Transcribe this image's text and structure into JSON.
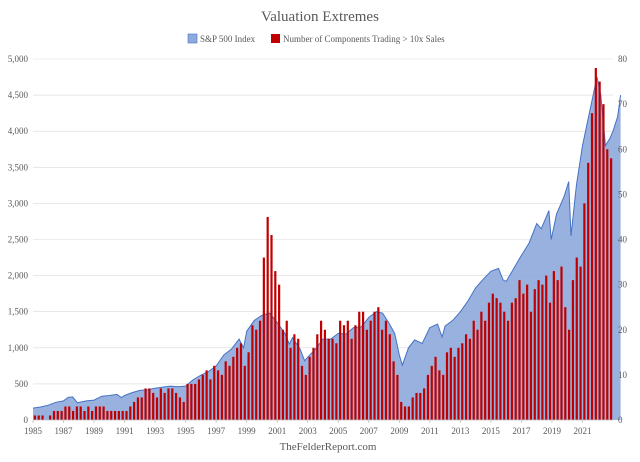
{
  "chart_data": {
    "type": "area+bar",
    "title": "Valuation Extremes",
    "footer": "TheFelderReport.com",
    "legend": [
      "S&P 500 Index",
      "Number of Components Trading > 10x Sales"
    ],
    "colors": {
      "area": "#8EA9DB",
      "area_line": "#4472C4",
      "bar": "#C00000",
      "grid": "#D9D9D9"
    },
    "x_range": [
      1985,
      2023
    ],
    "x_ticks": [
      "1985",
      "1987",
      "1989",
      "1991",
      "1993",
      "1995",
      "1997",
      "1999",
      "2001",
      "2003",
      "2005",
      "2007",
      "2009",
      "2011",
      "2013",
      "2015",
      "2017",
      "2019",
      "2021"
    ],
    "y_left": {
      "min": 0,
      "max": 5000,
      "step": 500,
      "tick_labels": [
        "0",
        "500",
        "1,000",
        "1,500",
        "2,000",
        "2,500",
        "3,000",
        "3,500",
        "4,000",
        "4,500",
        "5,000"
      ]
    },
    "y_right": {
      "min": 0,
      "max": 80,
      "step": 10,
      "tick_labels": [
        "0",
        "10",
        "20",
        "30",
        "40",
        "50",
        "60",
        "70",
        "80"
      ]
    },
    "series": [
      {
        "name": "S&P 500 Index",
        "axis": "left",
        "kind": "area",
        "points": [
          [
            1985.0,
            165
          ],
          [
            1985.5,
            180
          ],
          [
            1986.0,
            205
          ],
          [
            1986.5,
            245
          ],
          [
            1987.0,
            265
          ],
          [
            1987.3,
            315
          ],
          [
            1987.6,
            320
          ],
          [
            1987.9,
            240
          ],
          [
            1988.5,
            265
          ],
          [
            1989.0,
            275
          ],
          [
            1989.5,
            330
          ],
          [
            1990.0,
            340
          ],
          [
            1990.5,
            355
          ],
          [
            1990.8,
            310
          ],
          [
            1991.0,
            340
          ],
          [
            1991.5,
            380
          ],
          [
            1992.0,
            410
          ],
          [
            1992.5,
            420
          ],
          [
            1993.0,
            440
          ],
          [
            1993.5,
            455
          ],
          [
            1994.0,
            470
          ],
          [
            1994.5,
            460
          ],
          [
            1995.0,
            470
          ],
          [
            1995.5,
            560
          ],
          [
            1996.0,
            620
          ],
          [
            1996.5,
            670
          ],
          [
            1997.0,
            750
          ],
          [
            1997.5,
            900
          ],
          [
            1998.0,
            980
          ],
          [
            1998.5,
            1120
          ],
          [
            1998.8,
            1000
          ],
          [
            1999.0,
            1230
          ],
          [
            1999.5,
            1380
          ],
          [
            2000.0,
            1450
          ],
          [
            2000.5,
            1480
          ],
          [
            2001.0,
            1350
          ],
          [
            2001.5,
            1200
          ],
          [
            2001.8,
            1050
          ],
          [
            2002.0,
            1140
          ],
          [
            2002.5,
            980
          ],
          [
            2002.8,
            820
          ],
          [
            2003.0,
            870
          ],
          [
            2003.5,
            980
          ],
          [
            2004.0,
            1120
          ],
          [
            2004.5,
            1120
          ],
          [
            2005.0,
            1200
          ],
          [
            2005.5,
            1190
          ],
          [
            2006.0,
            1280
          ],
          [
            2006.5,
            1290
          ],
          [
            2007.0,
            1420
          ],
          [
            2007.5,
            1500
          ],
          [
            2007.9,
            1480
          ],
          [
            2008.3,
            1350
          ],
          [
            2008.7,
            1200
          ],
          [
            2009.0,
            900
          ],
          [
            2009.2,
            760
          ],
          [
            2009.6,
            1000
          ],
          [
            2010.0,
            1110
          ],
          [
            2010.5,
            1060
          ],
          [
            2011.0,
            1280
          ],
          [
            2011.5,
            1330
          ],
          [
            2011.8,
            1150
          ],
          [
            2012.0,
            1300
          ],
          [
            2012.5,
            1380
          ],
          [
            2013.0,
            1500
          ],
          [
            2013.5,
            1650
          ],
          [
            2014.0,
            1830
          ],
          [
            2014.5,
            1950
          ],
          [
            2015.0,
            2060
          ],
          [
            2015.5,
            2100
          ],
          [
            2015.8,
            1940
          ],
          [
            2016.0,
            1920
          ],
          [
            2016.5,
            2100
          ],
          [
            2017.0,
            2280
          ],
          [
            2017.5,
            2450
          ],
          [
            2018.0,
            2720
          ],
          [
            2018.3,
            2650
          ],
          [
            2018.8,
            2900
          ],
          [
            2018.95,
            2500
          ],
          [
            2019.3,
            2850
          ],
          [
            2019.8,
            3100
          ],
          [
            2020.1,
            3300
          ],
          [
            2020.25,
            2550
          ],
          [
            2020.6,
            3250
          ],
          [
            2021.0,
            3800
          ],
          [
            2021.5,
            4300
          ],
          [
            2021.95,
            4750
          ],
          [
            2022.2,
            4500
          ],
          [
            2022.5,
            3800
          ],
          [
            2022.8,
            3900
          ],
          [
            2023.0,
            4000
          ],
          [
            2023.3,
            4200
          ],
          [
            2023.5,
            4500
          ]
        ]
      },
      {
        "name": "Number of Components Trading > 10x Sales",
        "axis": "right",
        "kind": "bar",
        "values": [
          [
            1985.0,
            1
          ],
          [
            1985.25,
            1
          ],
          [
            1985.5,
            1
          ],
          [
            1985.75,
            0
          ],
          [
            1986.0,
            1
          ],
          [
            1986.25,
            2
          ],
          [
            1986.5,
            2
          ],
          [
            1986.75,
            2
          ],
          [
            1987.0,
            3
          ],
          [
            1987.25,
            3
          ],
          [
            1987.5,
            2
          ],
          [
            1987.75,
            3
          ],
          [
            1988.0,
            3
          ],
          [
            1988.25,
            2
          ],
          [
            1988.5,
            3
          ],
          [
            1988.75,
            2
          ],
          [
            1989.0,
            3
          ],
          [
            1989.25,
            3
          ],
          [
            1989.5,
            3
          ],
          [
            1989.75,
            2
          ],
          [
            1990.0,
            2
          ],
          [
            1990.25,
            2
          ],
          [
            1990.5,
            2
          ],
          [
            1990.75,
            2
          ],
          [
            1991.0,
            2
          ],
          [
            1991.25,
            3
          ],
          [
            1991.5,
            4
          ],
          [
            1991.75,
            5
          ],
          [
            1992.0,
            5
          ],
          [
            1992.25,
            7
          ],
          [
            1992.5,
            7
          ],
          [
            1992.75,
            6
          ],
          [
            1993.0,
            5
          ],
          [
            1993.25,
            7
          ],
          [
            1993.5,
            6
          ],
          [
            1993.75,
            7
          ],
          [
            1994.0,
            7
          ],
          [
            1994.25,
            6
          ],
          [
            1994.5,
            5
          ],
          [
            1994.75,
            4
          ],
          [
            1995.0,
            8
          ],
          [
            1995.25,
            8
          ],
          [
            1995.5,
            8
          ],
          [
            1995.75,
            9
          ],
          [
            1996.0,
            10
          ],
          [
            1996.25,
            11
          ],
          [
            1996.5,
            9
          ],
          [
            1996.75,
            12
          ],
          [
            1997.0,
            11
          ],
          [
            1997.25,
            10
          ],
          [
            1997.5,
            13
          ],
          [
            1997.75,
            12
          ],
          [
            1998.0,
            14
          ],
          [
            1998.25,
            16
          ],
          [
            1998.5,
            17
          ],
          [
            1998.75,
            12
          ],
          [
            1999.0,
            15
          ],
          [
            1999.25,
            21
          ],
          [
            1999.5,
            20
          ],
          [
            1999.75,
            22
          ],
          [
            2000.0,
            36
          ],
          [
            2000.25,
            45
          ],
          [
            2000.5,
            41
          ],
          [
            2000.75,
            33
          ],
          [
            2001.0,
            30
          ],
          [
            2001.25,
            20
          ],
          [
            2001.5,
            22
          ],
          [
            2001.75,
            16
          ],
          [
            2002.0,
            19
          ],
          [
            2002.25,
            18
          ],
          [
            2002.5,
            12
          ],
          [
            2002.75,
            10
          ],
          [
            2003.0,
            14
          ],
          [
            2003.25,
            16
          ],
          [
            2003.5,
            19
          ],
          [
            2003.75,
            22
          ],
          [
            2004.0,
            20
          ],
          [
            2004.25,
            18
          ],
          [
            2004.5,
            18
          ],
          [
            2004.75,
            17
          ],
          [
            2005.0,
            22
          ],
          [
            2005.25,
            21
          ],
          [
            2005.5,
            22
          ],
          [
            2005.75,
            18
          ],
          [
            2006.0,
            21
          ],
          [
            2006.25,
            24
          ],
          [
            2006.5,
            24
          ],
          [
            2006.75,
            20
          ],
          [
            2007.0,
            22
          ],
          [
            2007.25,
            24
          ],
          [
            2007.5,
            25
          ],
          [
            2007.75,
            20
          ],
          [
            2008.0,
            22
          ],
          [
            2008.25,
            19
          ],
          [
            2008.5,
            13
          ],
          [
            2008.75,
            10
          ],
          [
            2009.0,
            4
          ],
          [
            2009.25,
            3
          ],
          [
            2009.5,
            3
          ],
          [
            2009.75,
            5
          ],
          [
            2010.0,
            6
          ],
          [
            2010.25,
            6
          ],
          [
            2010.5,
            7
          ],
          [
            2010.75,
            10
          ],
          [
            2011.0,
            12
          ],
          [
            2011.25,
            14
          ],
          [
            2011.5,
            11
          ],
          [
            2011.75,
            10
          ],
          [
            2012.0,
            15
          ],
          [
            2012.25,
            16
          ],
          [
            2012.5,
            14
          ],
          [
            2012.75,
            16
          ],
          [
            2013.0,
            17
          ],
          [
            2013.25,
            19
          ],
          [
            2013.5,
            18
          ],
          [
            2013.75,
            22
          ],
          [
            2014.0,
            20
          ],
          [
            2014.25,
            24
          ],
          [
            2014.5,
            22
          ],
          [
            2014.75,
            26
          ],
          [
            2015.0,
            28
          ],
          [
            2015.25,
            27
          ],
          [
            2015.5,
            26
          ],
          [
            2015.75,
            24
          ],
          [
            2016.0,
            22
          ],
          [
            2016.25,
            26
          ],
          [
            2016.5,
            27
          ],
          [
            2016.75,
            31
          ],
          [
            2017.0,
            28
          ],
          [
            2017.25,
            30
          ],
          [
            2017.5,
            24
          ],
          [
            2017.75,
            29
          ],
          [
            2018.0,
            31
          ],
          [
            2018.25,
            30
          ],
          [
            2018.5,
            32
          ],
          [
            2018.75,
            26
          ],
          [
            2019.0,
            33
          ],
          [
            2019.25,
            31
          ],
          [
            2019.5,
            34
          ],
          [
            2019.75,
            25
          ],
          [
            2020.0,
            20
          ],
          [
            2020.25,
            31
          ],
          [
            2020.5,
            36
          ],
          [
            2020.75,
            34
          ],
          [
            2021.0,
            48
          ],
          [
            2021.25,
            57
          ],
          [
            2021.5,
            68
          ],
          [
            2021.75,
            78
          ],
          [
            2022.0,
            75
          ],
          [
            2022.25,
            70
          ],
          [
            2022.5,
            60
          ],
          [
            2022.75,
            58
          ]
        ]
      }
    ]
  }
}
